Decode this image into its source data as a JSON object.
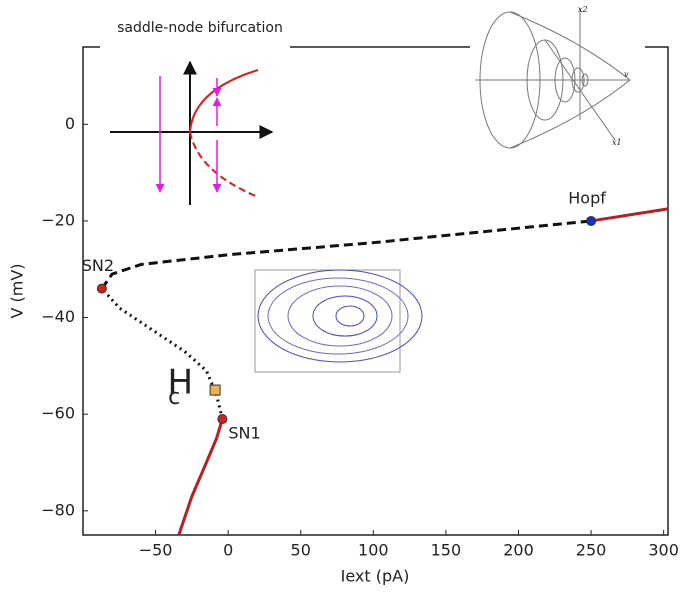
{
  "chart_data": {
    "type": "line",
    "title": "saddle-node bifurcation",
    "x_label": "Iext (pA)",
    "y_label": "V (mV)",
    "xlim": [
      -100,
      303
    ],
    "ylim": [
      -85,
      16
    ],
    "xticks": [
      {
        "value": -50,
        "label": "−50"
      },
      0,
      50,
      100,
      150,
      200,
      250,
      300
    ],
    "yticks": [
      0,
      {
        "value": -20,
        "label": "−20"
      },
      {
        "value": -40,
        "label": "−40"
      },
      {
        "value": -60,
        "label": "−60"
      },
      {
        "value": -80,
        "label": "−80"
      }
    ],
    "grid": false,
    "series": [
      {
        "color": "#b52025",
        "dash": "solid",
        "x": [
          -34,
          -25,
          -15,
          -8,
          -4
        ],
        "values": [
          -85,
          -77,
          -70,
          -65,
          -61
        ]
      },
      {
        "color": "#111111",
        "dash": "dotted",
        "x": [
          -4,
          -8,
          -15,
          -30,
          -55,
          -75,
          -87
        ],
        "values": [
          -61,
          -56,
          -51,
          -47,
          -42,
          -38,
          -34
        ]
      },
      {
        "color": "#111111",
        "dash": "dashed",
        "x": [
          -87,
          -80,
          -60,
          0,
          100,
          200,
          250
        ],
        "values": [
          -34,
          -31,
          -29,
          -27,
          -24.5,
          -21.5,
          -20
        ]
      },
      {
        "color": "#b52025",
        "dash": "solid",
        "x": [
          250,
          303
        ],
        "values": [
          -20,
          -17.5
        ]
      }
    ],
    "points": [
      {
        "label": "SN2",
        "side": "above",
        "shape": "circle",
        "color": "#d42020",
        "x": -87,
        "y": -34
      },
      {
        "label": "SN1",
        "side": "right",
        "shape": "circle",
        "color": "#d42020",
        "x": -4,
        "y": -61
      },
      {
        "label": "Hopf",
        "side": "above",
        "shape": "circle",
        "color": "#1530c8",
        "x": 250,
        "y": -20
      },
      {
        "label": "H",
        "sub": "c",
        "side": "left",
        "shape": "square",
        "color": "#f0b050",
        "x": -9,
        "y": -55
      }
    ],
    "inset_labels": [
      "x2",
      "v",
      "x1"
    ]
  }
}
